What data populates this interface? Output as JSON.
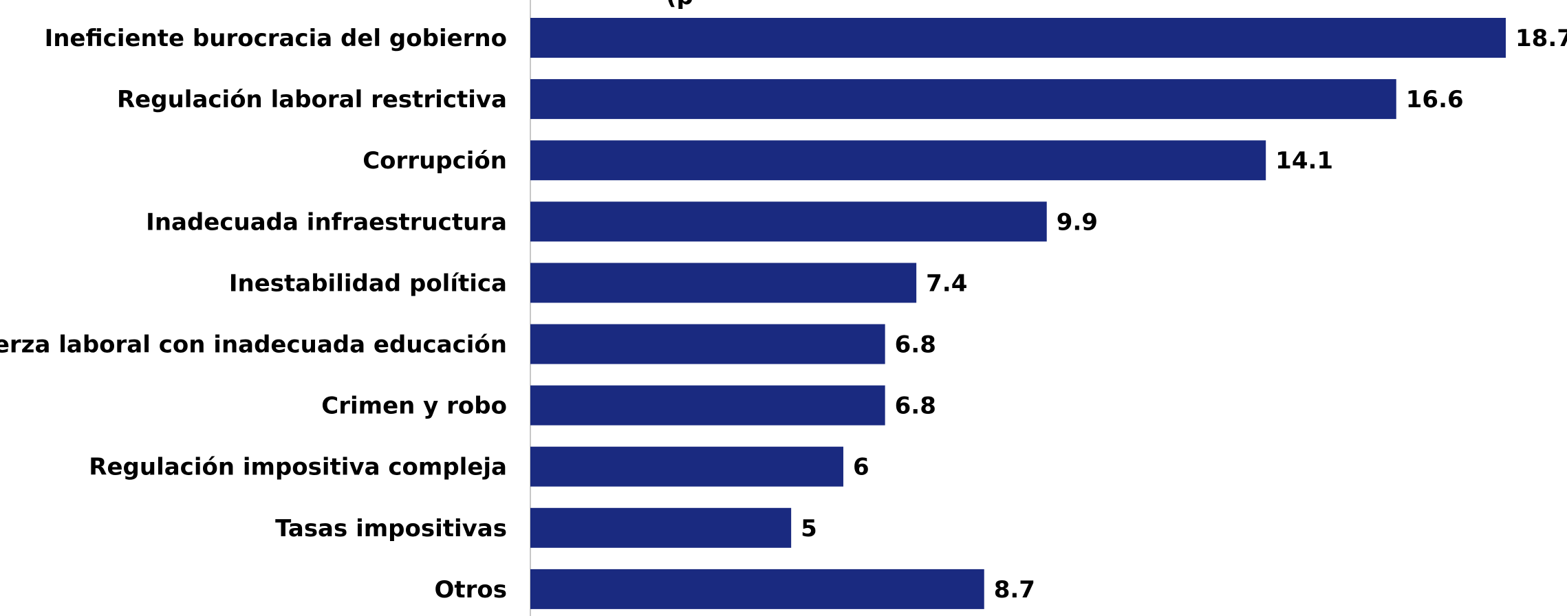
{
  "chart_data": {
    "type": "bar",
    "orientation": "horizontal",
    "title": "(p",
    "categories": [
      "Ineficiente burocracia del gobierno",
      "Regulación laboral restrictiva",
      "Corrupción",
      "Inadecuada infraestructura",
      "Inestabilidad política",
      "Fuerza laboral con inadecuada educación",
      "Crimen y robo",
      "Regulación impositiva compleja",
      "Tasas impositivas",
      "Otros"
    ],
    "values": [
      18.7,
      16.6,
      14.1,
      9.9,
      7.4,
      6.8,
      6.8,
      6,
      5,
      8.7
    ],
    "value_labels": [
      "18.7",
      "16.6",
      "14.1",
      "9.9",
      "7.4",
      "6.8",
      "6.8",
      "6",
      "5",
      "8.7"
    ],
    "xlim": [
      0,
      18.7
    ],
    "grid": false,
    "data_labels": true,
    "legend": "none"
  },
  "colors": {
    "bar": "#1a2a80",
    "axis": "#c8c8c8",
    "text": "#000000"
  }
}
